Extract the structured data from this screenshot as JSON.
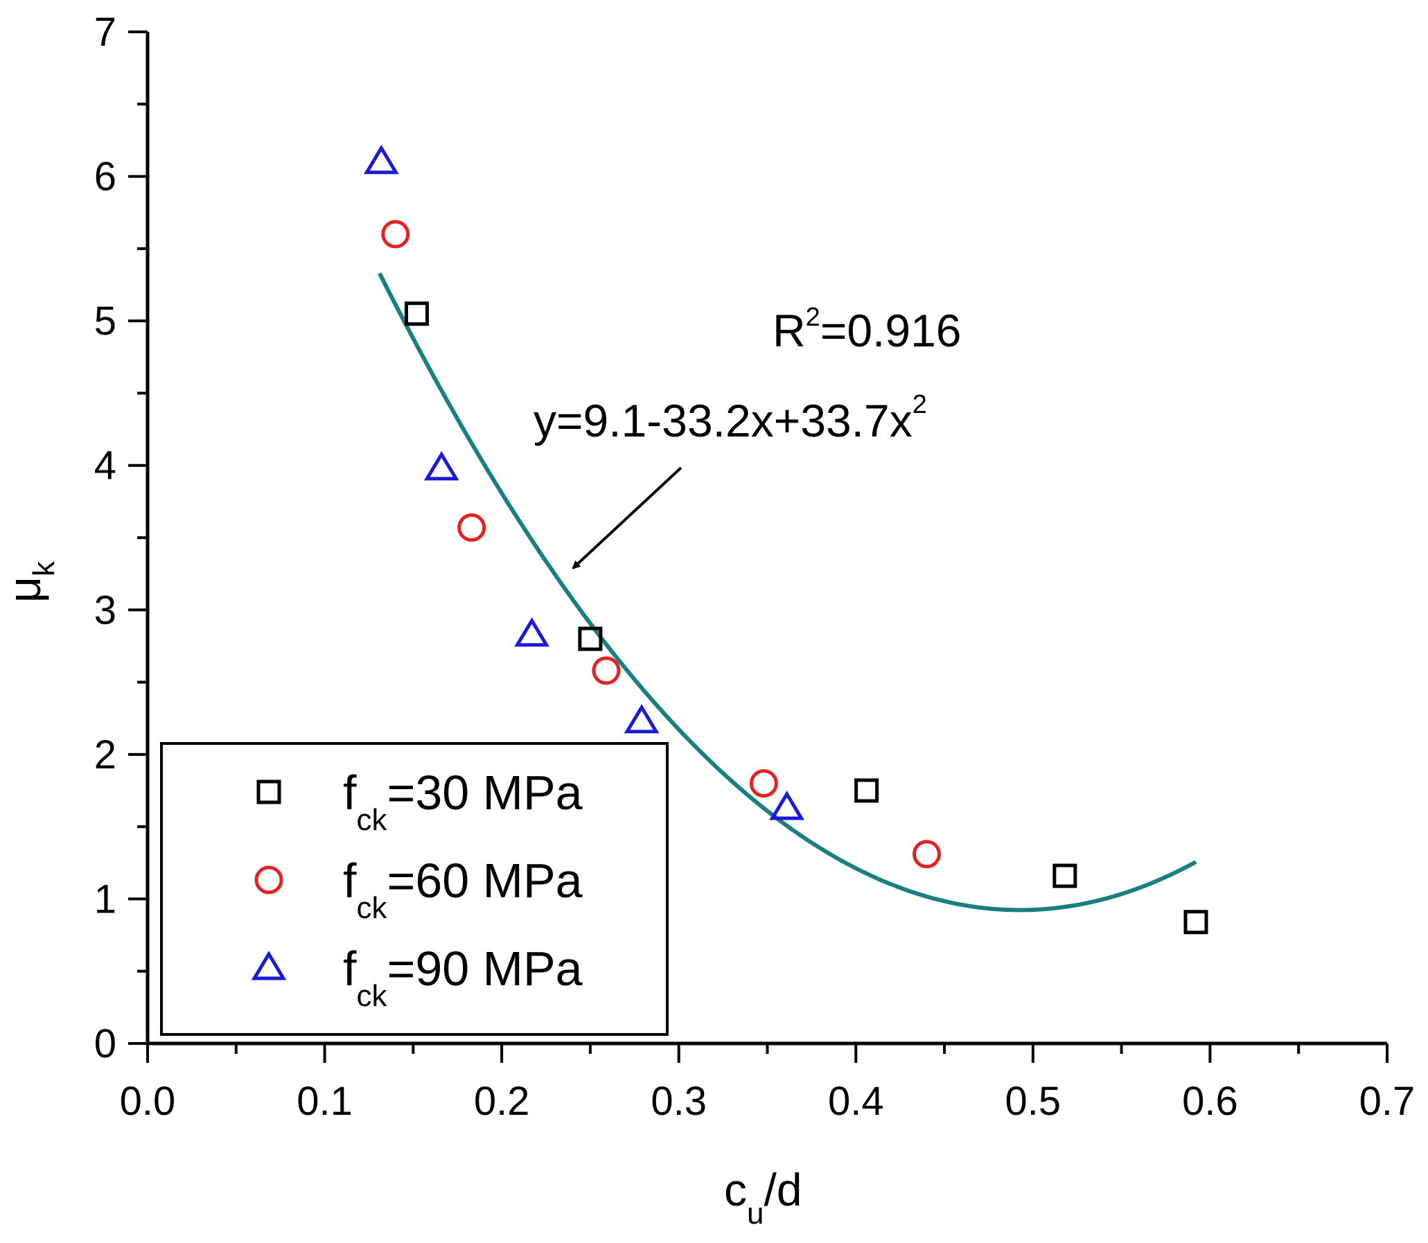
{
  "chart_data": {
    "type": "scatter",
    "title": "",
    "xlabel": {
      "main": "c",
      "sub": "u",
      "rest": "/d"
    },
    "ylabel": {
      "main": "μ",
      "sub": "k"
    },
    "xlim": [
      0.0,
      0.7
    ],
    "ylim": [
      0,
      7
    ],
    "x_ticks": [
      0.0,
      0.1,
      0.2,
      0.3,
      0.4,
      0.5,
      0.6,
      0.7
    ],
    "x_tick_labels": [
      "0.0",
      "0.1",
      "0.2",
      "0.3",
      "0.4",
      "0.5",
      "0.6",
      "0.7"
    ],
    "y_ticks": [
      0,
      1,
      2,
      3,
      4,
      5,
      6,
      7
    ],
    "y_tick_labels": [
      "0",
      "1",
      "2",
      "3",
      "4",
      "5",
      "6",
      "7"
    ],
    "grid": false,
    "legend_position": "bottom-left",
    "series": [
      {
        "name": "f_ck=30 MPa",
        "legend": {
          "main": "f",
          "sub": "ck",
          "rest": "=30 MPa"
        },
        "marker": "square",
        "color": "#000000",
        "x": [
          0.152,
          0.25,
          0.406,
          0.518,
          0.592
        ],
        "y": [
          5.05,
          2.8,
          1.75,
          1.16,
          0.84
        ]
      },
      {
        "name": "f_ck=60 MPa",
        "legend": {
          "main": "f",
          "sub": "ck",
          "rest": "=60 MPa"
        },
        "marker": "circle",
        "color": "#e32222",
        "x": [
          0.14,
          0.183,
          0.259,
          0.348,
          0.44
        ],
        "y": [
          5.6,
          3.57,
          2.58,
          1.8,
          1.31
        ]
      },
      {
        "name": "f_ck=90 MPa",
        "legend": {
          "main": "f",
          "sub": "ck",
          "rest": "=90 MPa"
        },
        "marker": "triangle",
        "color": "#1a1ad6",
        "x": [
          0.132,
          0.166,
          0.217,
          0.279,
          0.361
        ],
        "y": [
          6.1,
          3.98,
          2.83,
          2.23,
          1.63
        ]
      }
    ],
    "fit": {
      "name": "quadratic fit",
      "color": "#1a7f7f",
      "coefficients": [
        9.1,
        -33.2,
        33.7
      ],
      "x_range": [
        0.131,
        0.592
      ]
    },
    "annotations": {
      "r2": {
        "main": "R",
        "sup": "2",
        "rest": "=0.916"
      },
      "equation": {
        "main": "y=9.1-33.2x+33.7x",
        "sup": "2"
      }
    }
  }
}
